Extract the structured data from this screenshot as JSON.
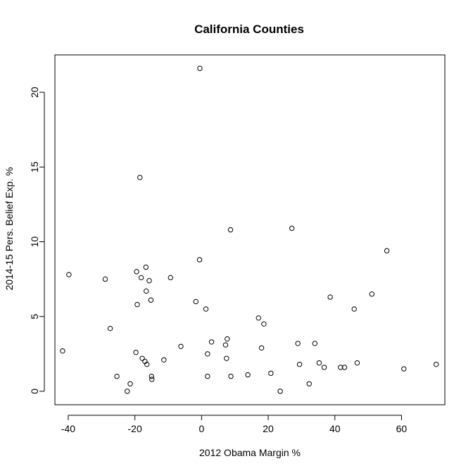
{
  "chart_data": {
    "type": "scatter",
    "title": "California Counties",
    "xlabel": "2012 Obama Margin %",
    "ylabel": "2014-15 Pers. Belief Exp. %",
    "xlim": [
      -44,
      73
    ],
    "ylim": [
      -0.9,
      22.5
    ],
    "xticks": [
      -40,
      -20,
      0,
      20,
      40,
      60
    ],
    "yticks": [
      0,
      5,
      10,
      15,
      20
    ],
    "xtick_labels": [
      "-40",
      "-20",
      "0",
      "20",
      "40",
      "60"
    ],
    "ytick_labels": [
      "0",
      "5",
      "10",
      "15",
      "20"
    ],
    "grid": false,
    "legend": "none",
    "marker": "open-circle",
    "points": [
      {
        "x": -41.7,
        "y": 2.7
      },
      {
        "x": -39.8,
        "y": 7.8
      },
      {
        "x": -28.9,
        "y": 7.5
      },
      {
        "x": -27.4,
        "y": 4.2
      },
      {
        "x": -25.4,
        "y": 1.0
      },
      {
        "x": -22.3,
        "y": 0.0
      },
      {
        "x": -21.4,
        "y": 0.5
      },
      {
        "x": -19.7,
        "y": 2.6
      },
      {
        "x": -19.5,
        "y": 8.0
      },
      {
        "x": -19.3,
        "y": 5.8
      },
      {
        "x": -18.5,
        "y": 14.3
      },
      {
        "x": -18.1,
        "y": 7.6
      },
      {
        "x": -17.8,
        "y": 2.2
      },
      {
        "x": -17.0,
        "y": 2.0
      },
      {
        "x": -16.7,
        "y": 8.3
      },
      {
        "x": -16.6,
        "y": 6.7
      },
      {
        "x": -16.4,
        "y": 1.8
      },
      {
        "x": -15.7,
        "y": 7.4
      },
      {
        "x": -15.2,
        "y": 6.1
      },
      {
        "x": -15.0,
        "y": 1.0
      },
      {
        "x": -14.9,
        "y": 0.8
      },
      {
        "x": -11.3,
        "y": 2.1
      },
      {
        "x": -9.3,
        "y": 7.6
      },
      {
        "x": -6.2,
        "y": 3.0
      },
      {
        "x": -1.7,
        "y": 6.0
      },
      {
        "x": -0.5,
        "y": 21.6
      },
      {
        "x": -0.6,
        "y": 8.8
      },
      {
        "x": 1.3,
        "y": 5.5
      },
      {
        "x": 1.8,
        "y": 2.5
      },
      {
        "x": 1.8,
        "y": 1.0
      },
      {
        "x": 3.0,
        "y": 3.3
      },
      {
        "x": 7.2,
        "y": 3.1
      },
      {
        "x": 7.5,
        "y": 2.2
      },
      {
        "x": 7.7,
        "y": 3.5
      },
      {
        "x": 8.7,
        "y": 10.8
      },
      {
        "x": 8.8,
        "y": 1.0
      },
      {
        "x": 13.9,
        "y": 1.1
      },
      {
        "x": 17.1,
        "y": 4.9
      },
      {
        "x": 18.0,
        "y": 2.9
      },
      {
        "x": 18.7,
        "y": 4.5
      },
      {
        "x": 20.8,
        "y": 1.2
      },
      {
        "x": 23.6,
        "y": 0.0
      },
      {
        "x": 27.1,
        "y": 10.9
      },
      {
        "x": 28.9,
        "y": 3.2
      },
      {
        "x": 29.4,
        "y": 1.8
      },
      {
        "x": 32.3,
        "y": 0.5
      },
      {
        "x": 34.0,
        "y": 3.2
      },
      {
        "x": 35.3,
        "y": 1.9
      },
      {
        "x": 36.8,
        "y": 1.6
      },
      {
        "x": 38.6,
        "y": 6.3
      },
      {
        "x": 41.7,
        "y": 1.6
      },
      {
        "x": 42.9,
        "y": 1.6
      },
      {
        "x": 45.8,
        "y": 5.5
      },
      {
        "x": 46.7,
        "y": 1.9
      },
      {
        "x": 51.1,
        "y": 6.5
      },
      {
        "x": 55.6,
        "y": 9.4
      },
      {
        "x": 60.7,
        "y": 1.5
      },
      {
        "x": 70.4,
        "y": 1.8
      }
    ]
  }
}
